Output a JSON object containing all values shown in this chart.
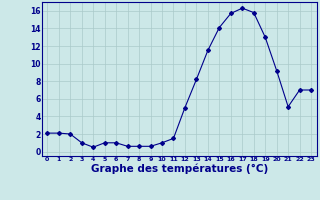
{
  "x": [
    0,
    1,
    2,
    3,
    4,
    5,
    6,
    7,
    8,
    9,
    10,
    11,
    12,
    13,
    14,
    15,
    16,
    17,
    18,
    19,
    20,
    21,
    22,
    23
  ],
  "y": [
    2.1,
    2.1,
    2.0,
    1.0,
    0.5,
    1.0,
    1.0,
    0.6,
    0.6,
    0.6,
    1.0,
    1.5,
    5.0,
    8.2,
    11.5,
    14.1,
    15.7,
    16.3,
    15.8,
    13.0,
    9.2,
    5.1,
    7.0,
    7.0
  ],
  "line_color": "#00008B",
  "marker": "D",
  "marker_size": 2,
  "bg_color": "#cce8e8",
  "grid_color": "#aacaca",
  "xlabel": "Graphe des températures (°C)",
  "xlabel_color": "#00008B",
  "xlabel_fontsize": 7.5,
  "tick_color": "#00008B",
  "ylim": [
    -0.5,
    17
  ],
  "yticks": [
    0,
    2,
    4,
    6,
    8,
    10,
    12,
    14,
    16
  ],
  "xlim": [
    -0.5,
    23.5
  ],
  "xticks": [
    0,
    1,
    2,
    3,
    4,
    5,
    6,
    7,
    8,
    9,
    10,
    11,
    12,
    13,
    14,
    15,
    16,
    17,
    18,
    19,
    20,
    21,
    22,
    23
  ],
  "xtick_labels": [
    "0",
    "1",
    "2",
    "3",
    "4",
    "5",
    "6",
    "7",
    "8",
    "9",
    "10",
    "11",
    "12",
    "13",
    "14",
    "15",
    "16",
    "17",
    "18",
    "19",
    "20",
    "21",
    "22",
    "23"
  ]
}
